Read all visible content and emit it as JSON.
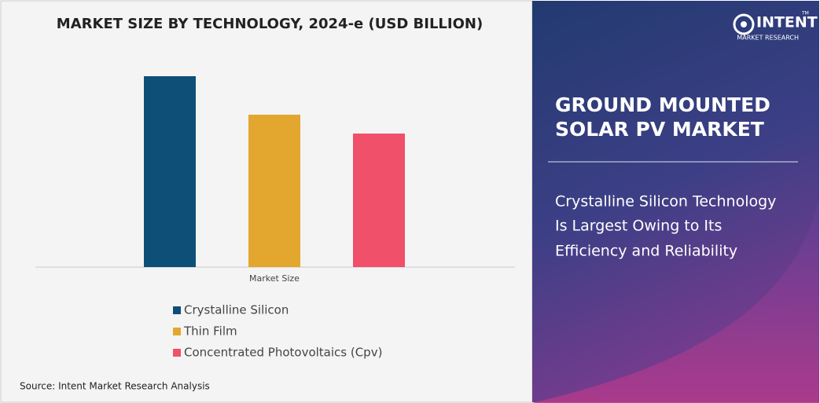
{
  "chart_data": {
    "type": "bar",
    "title": "MARKET SIZE BY TECHNOLOGY, 2024-e (USD BILLION)",
    "categories": [
      "Market Size"
    ],
    "series": [
      {
        "name": "Crystalline Silicon",
        "color": "#0e4f78",
        "values": [
          24.3
        ]
      },
      {
        "name": "Thin Film",
        "color": "#e3a72f",
        "values": [
          19.4
        ]
      },
      {
        "name": "Concentrated Photovoltaics (Cpv)",
        "color": "#f0506a",
        "values": [
          17.0
        ]
      }
    ]
  },
  "source": "Source: Intent Market Research Analysis",
  "brand": {
    "name": "INTENT",
    "tagline": "MARKET RESEARCH",
    "mark": "TM"
  },
  "panel": {
    "title": [
      "GROUND MOUNTED",
      "SOLAR PV MARKET"
    ],
    "subtitle": [
      "Crystalline Silicon Technology",
      "Is Largest Owing to Its",
      "Efficiency and Reliability"
    ]
  }
}
